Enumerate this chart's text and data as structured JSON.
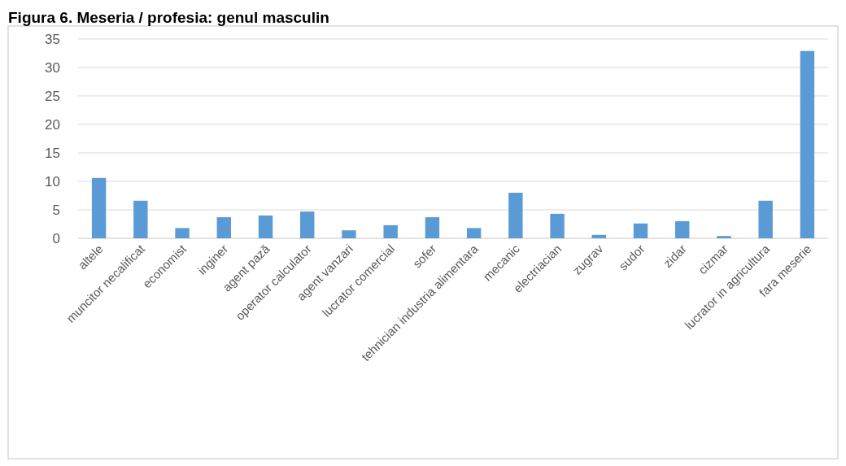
{
  "chart_data": {
    "type": "bar",
    "title": "Figura 6. Meseria / profesia: genul masculin",
    "categories": [
      "altele",
      "muncitor necalificat",
      "economist",
      "inginer",
      "agent pază",
      "operator calculator",
      "agent vanzari",
      "lucrator comercial",
      "sofer",
      "tehnician industria alimentara",
      "mecanic",
      "electriacian",
      "zugrav",
      "sudor",
      "zidar",
      "cizmar",
      "lucrator in agricultura",
      "fara meserie"
    ],
    "values": [
      10.6,
      6.6,
      1.8,
      3.7,
      4.0,
      4.7,
      1.4,
      2.3,
      3.7,
      1.8,
      8.0,
      4.3,
      0.6,
      2.6,
      3.0,
      0.4,
      6.6,
      32.9
    ],
    "color": "#5b9bd5",
    "ylim": [
      0,
      35
    ],
    "yticks": [
      0,
      5,
      10,
      15,
      20,
      25,
      30,
      35
    ],
    "grid": "y"
  }
}
